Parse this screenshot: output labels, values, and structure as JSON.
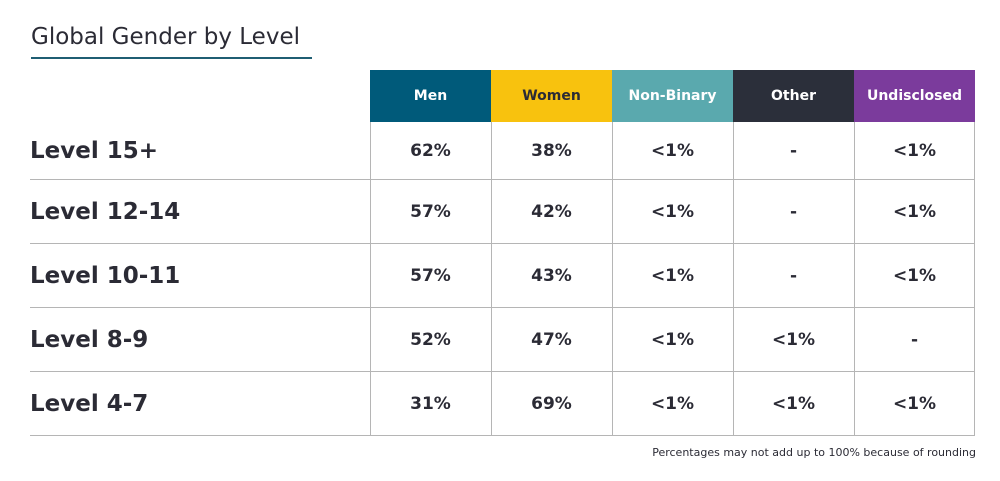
{
  "chart_data": {
    "type": "table",
    "title": "Global Gender by Level",
    "columns": [
      {
        "label": "Men",
        "color": "#005a7a",
        "text_color": "#ffffff"
      },
      {
        "label": "Women",
        "color": "#f8c20e",
        "text_color": "#2b2b35"
      },
      {
        "label": "Non-Binary",
        "color": "#5aa9ae",
        "text_color": "#ffffff"
      },
      {
        "label": "Other",
        "color": "#2b2f3a",
        "text_color": "#ffffff"
      },
      {
        "label": "Undisclosed",
        "color": "#7b3b9c",
        "text_color": "#ffffff"
      }
    ],
    "rows": [
      {
        "label": "Level 15+",
        "values": [
          "62%",
          "38%",
          "<1%",
          "-",
          "<1%"
        ]
      },
      {
        "label": "Level 12-14",
        "values": [
          "57%",
          "42%",
          "<1%",
          "-",
          "<1%"
        ]
      },
      {
        "label": "Level 10-11",
        "values": [
          "57%",
          "43%",
          "<1%",
          "-",
          "<1%"
        ]
      },
      {
        "label": "Level 8-9",
        "values": [
          "52%",
          "47%",
          "<1%",
          "<1%",
          "-"
        ]
      },
      {
        "label": "Level 4-7",
        "values": [
          "31%",
          "69%",
          "<1%",
          "<1%",
          "<1%"
        ]
      }
    ],
    "note": "Percentages may not add up to 100% because of rounding"
  },
  "colors": {
    "title_rule": "#1f5e73",
    "grid_lines": "#b5b5b5",
    "text": "#2b2b35"
  }
}
